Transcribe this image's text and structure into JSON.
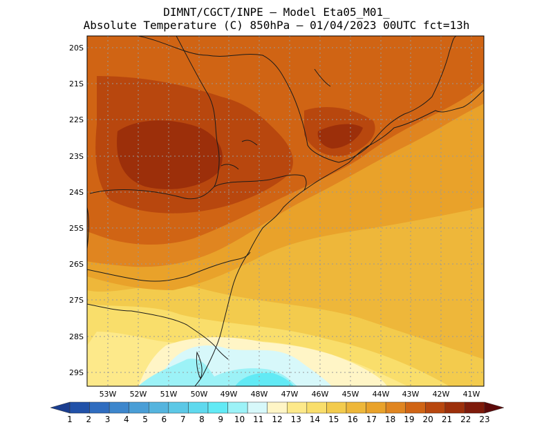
{
  "title": {
    "line1": "DIMNT/CGCT/INPE –  Model Eta05_M01_",
    "line2": "Absolute Temperature (C) 850hPa –  01/04/2023 00UTC fct=13h"
  },
  "chart_data": {
    "type": "heatmap",
    "variable": "Absolute Temperature (C) 850hPa",
    "lat_labels": [
      "20S",
      "21S",
      "22S",
      "23S",
      "24S",
      "25S",
      "26S",
      "27S",
      "28S",
      "29S"
    ],
    "lon_labels": [
      "53W",
      "52W",
      "51W",
      "50W",
      "49W",
      "48W",
      "47W",
      "46W",
      "45W",
      "44W",
      "43W",
      "42W",
      "41W"
    ],
    "lat_range": [
      -29.4,
      -19.8
    ],
    "lon_range": [
      -53.7,
      -40.6
    ],
    "colorbar": {
      "labels": [
        "1",
        "2",
        "3",
        "4",
        "5",
        "6",
        "7",
        "8",
        "9",
        "10",
        "11",
        "12",
        "13",
        "14",
        "15",
        "16",
        "17",
        "18",
        "19",
        "20",
        "21",
        "22",
        "23"
      ],
      "colors": [
        "#1a3d8f",
        "#2151a8",
        "#2f6cbf",
        "#3d86cc",
        "#4a9ed6",
        "#55b4de",
        "#5cc8e6",
        "#5fd9ee",
        "#62eaf5",
        "#9cf2f7",
        "#d7f8fa",
        "#fff5c6",
        "#fde98a",
        "#f9de6b",
        "#f3cb4d",
        "#eeb73a",
        "#e9a22a",
        "#e08520",
        "#d06414",
        "#b8470e",
        "#9c2f0a",
        "#7e1a0a",
        "#5c0a0a"
      ]
    }
  }
}
